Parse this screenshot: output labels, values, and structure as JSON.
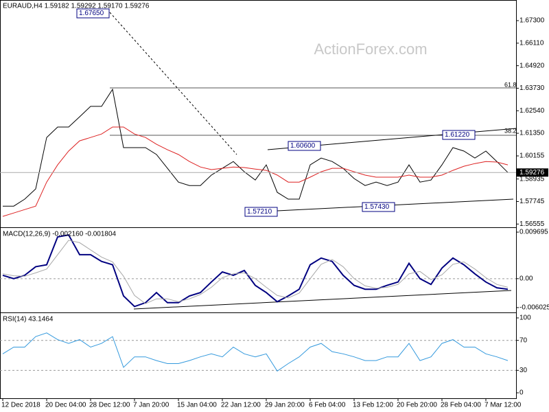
{
  "chart_data": [
    {
      "type": "line",
      "title": "EURAUD,H4  1.59182 1.59292 1.59170 1.59276",
      "watermark": "ActionForex.com",
      "ylim": [
        1.5642,
        1.6839
      ],
      "yticks": [
        {
          "value": 1.673,
          "label": "1.67300"
        },
        {
          "value": 1.6611,
          "label": "1.66110"
        },
        {
          "value": 1.6492,
          "label": "1.64920"
        },
        {
          "value": 1.6373,
          "label": "1.63730"
        },
        {
          "value": 1.6254,
          "label": "1.62540"
        },
        {
          "value": 1.6135,
          "label": "1.61350"
        },
        {
          "value": 1.60155,
          "label": "1.60155"
        },
        {
          "value": 1.58935,
          "label": "1.58935"
        },
        {
          "value": 1.57745,
          "label": "1.57745"
        },
        {
          "value": 1.56555,
          "label": "1.56555"
        }
      ],
      "current_price": {
        "value": 1.59276,
        "label": "1.59276"
      },
      "annotations": [
        "1.67650",
        "1.60600",
        "1.61220",
        "1.57210",
        "1.57430"
      ],
      "fib_labels": [
        "61.8",
        "38.2"
      ],
      "series": [
        {
          "name": "EURAUD",
          "color": "#000000",
          "values": [
            1.575,
            1.575,
            1.5787,
            1.5841,
            1.6113,
            1.6168,
            1.6168,
            1.6222,
            1.6277,
            1.6277,
            1.6367,
            1.6059,
            1.6059,
            1.6059,
            1.6023,
            1.595,
            1.5877,
            1.5859,
            1.5859,
            1.5914,
            1.595,
            1.5986,
            1.5932,
            1.5888,
            1.5968,
            1.5823,
            1.5787,
            1.5787,
            1.5968,
            1.6004,
            1.5986,
            1.595,
            1.5896,
            1.5859,
            1.5877,
            1.5859,
            1.5877,
            1.5968,
            1.5877,
            1.5888,
            1.5968,
            1.6059,
            1.6041,
            1.6004,
            1.6041,
            1.5986,
            1.5928
          ]
        },
        {
          "name": "MA",
          "color": "#dd2020",
          "values": [
            1.5696,
            1.5714,
            1.5732,
            1.575,
            1.5877,
            1.5968,
            1.6041,
            1.6095,
            1.6113,
            1.6131,
            1.6168,
            1.6168,
            1.6131,
            1.6113,
            1.6077,
            1.6048,
            1.6023,
            1.5986,
            1.5957,
            1.5943,
            1.595,
            1.5957,
            1.5954,
            1.5946,
            1.5939,
            1.5914,
            1.5877,
            1.5877,
            1.5903,
            1.5932,
            1.595,
            1.595,
            1.5932,
            1.5914,
            1.5903,
            1.5903,
            1.5903,
            1.5914,
            1.5903,
            1.5903,
            1.5914,
            1.5939,
            1.5961,
            1.5975,
            1.5986,
            1.5983,
            1.5968
          ]
        }
      ]
    },
    {
      "type": "line",
      "title": "MACD(12,26,9) -0.002160 -0.001804",
      "ylim": [
        -0.00689,
        0.01056
      ],
      "yticks": [
        {
          "value": 0.009695,
          "label": "0.009695"
        },
        {
          "value": 0,
          "label": "0.00"
        },
        {
          "value": -0.006025,
          "label": "-0.006025"
        }
      ],
      "dashed_levels": [
        0
      ],
      "series": [
        {
          "name": "MACD",
          "color": "#000080",
          "values": [
            0.0007,
            0,
            0.0007,
            0.0025,
            0.0029,
            0.0087,
            0.0091,
            0.005,
            0.005,
            0.0036,
            0.0029,
            -0.0036,
            -0.0058,
            -0.005,
            -0.0029,
            -0.005,
            -0.005,
            -0.0036,
            -0.0029,
            -0.0007,
            0.0014,
            0.0007,
            0.0017,
            -0.0014,
            -0.0029,
            -0.0048,
            -0.0036,
            -0.0022,
            0.0029,
            0.0043,
            0.0036,
            0.0007,
            -0.0014,
            -0.0022,
            -0.0022,
            -0.0014,
            -0.0007,
            0.0032,
            0,
            -0.0012,
            0.0022,
            0.0043,
            0.0029,
            0.001,
            -0.0007,
            -0.0019,
            -0.0022
          ]
        },
        {
          "name": "Signal",
          "color": "#a8a8a8",
          "values": [
            0.001,
            0.0006,
            0.0005,
            0.0012,
            0.002,
            0.005,
            0.008,
            0.0075,
            0.006,
            0.0045,
            0.0035,
            0.0005,
            -0.0035,
            -0.0052,
            -0.0042,
            -0.0042,
            -0.0048,
            -0.0042,
            -0.0033,
            -0.0018,
            0.0002,
            0.001,
            0.0012,
            0.0,
            -0.0018,
            -0.0035,
            -0.004,
            -0.003,
            0.0,
            0.003,
            0.004,
            0.0025,
            0.0,
            -0.0015,
            -0.002,
            -0.0018,
            -0.0012,
            0.001,
            0.0015,
            -0.0002,
            0.0008,
            0.003,
            0.0035,
            0.002,
            0.0002,
            -0.0012,
            -0.0018
          ]
        }
      ]
    },
    {
      "type": "line",
      "title": "RSI(14) 43.1464",
      "ylim": [
        -7.3,
        106.4
      ],
      "yticks": [
        100,
        70,
        30,
        0
      ],
      "dashed_levels": [
        70,
        30
      ],
      "categories": [
        "12 Dec 2018",
        null,
        null,
        null,
        "20 Dec 04:00",
        null,
        null,
        null,
        "28 Dec 12:00",
        null,
        null,
        null,
        "7 Jan 20:00",
        null,
        null,
        null,
        "15 Jan 04:00",
        null,
        null,
        null,
        "22 Jan 12:00",
        null,
        null,
        null,
        "29 Jan 20:00",
        null,
        null,
        null,
        "6 Feb 04:00",
        null,
        null,
        null,
        "13 Feb 12:00",
        null,
        null,
        null,
        "20 Feb 20:00",
        null,
        null,
        null,
        "28 Feb 04:00",
        null,
        null,
        null,
        "7 Mar 12:00",
        null,
        null
      ],
      "series": [
        {
          "name": "RSI",
          "color": "#3399dd",
          "values": [
            52,
            61,
            61,
            75,
            80,
            71,
            66,
            71,
            61,
            66,
            75,
            34,
            48,
            48,
            43,
            39,
            39,
            43,
            48,
            52,
            48,
            61,
            52,
            48,
            52,
            29,
            39,
            48,
            61,
            66,
            55,
            52,
            48,
            43,
            43,
            48,
            48,
            66,
            43,
            48,
            66,
            71,
            61,
            61,
            52,
            48,
            43
          ]
        }
      ]
    }
  ]
}
